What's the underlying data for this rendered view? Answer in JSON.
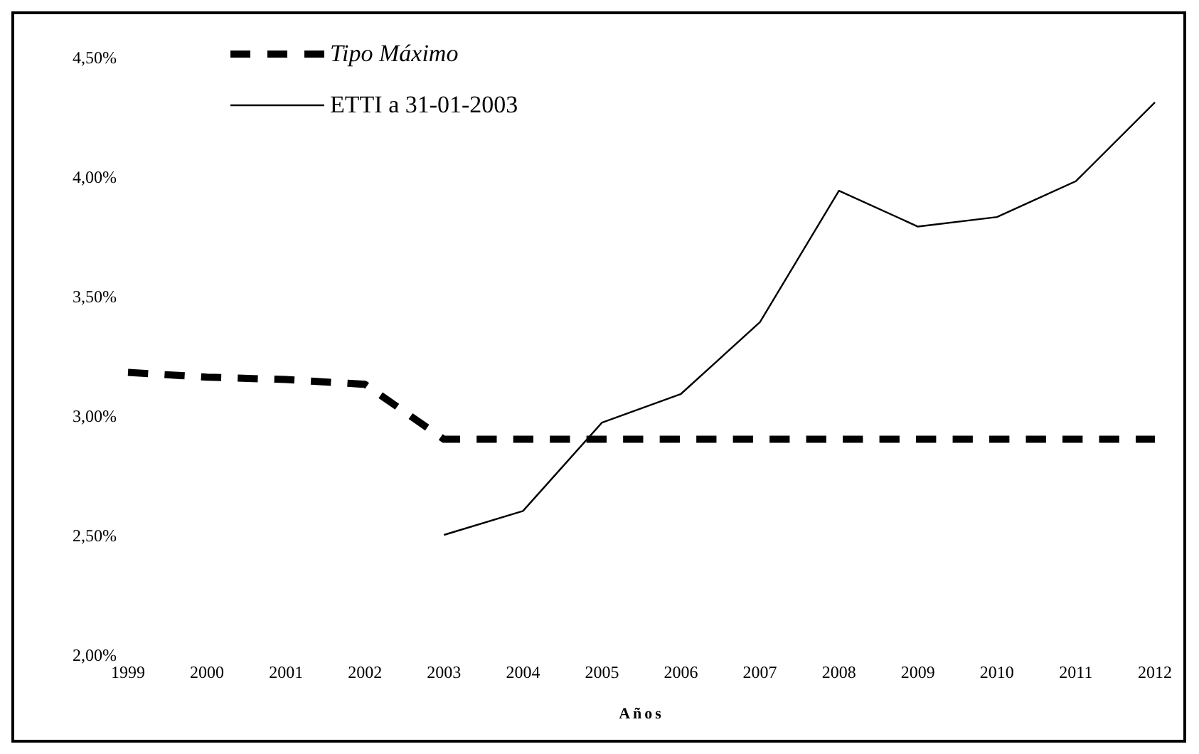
{
  "chart_data": {
    "type": "line",
    "xlabel": "Años",
    "categories": [
      "1999",
      "2000",
      "2001",
      "2002",
      "2003",
      "2004",
      "2005",
      "2006",
      "2007",
      "2008",
      "2009",
      "2010",
      "2011",
      "2012"
    ],
    "series": [
      {
        "name": "Tipo Máximo",
        "color": "#000000",
        "line_style": "dashed",
        "values": [
          3.18,
          3.16,
          3.15,
          3.13,
          2.9,
          2.9,
          2.9,
          2.9,
          2.9,
          2.9,
          2.9,
          2.9,
          2.9,
          2.9
        ]
      },
      {
        "name": "ETTI a 31-01-2003",
        "color": "#000000",
        "line_style": "solid",
        "values": [
          null,
          null,
          null,
          null,
          2.5,
          2.6,
          2.97,
          3.09,
          3.39,
          3.94,
          3.79,
          3.83,
          3.98,
          4.31
        ]
      }
    ],
    "ylim": [
      2,
      4.5
    ],
    "yticks": [
      {
        "value": 2,
        "label": "2,00%"
      },
      {
        "value": 2.5,
        "label": "2,50%"
      },
      {
        "value": 3,
        "label": "3,00%"
      },
      {
        "value": 3.5,
        "label": "3,50%"
      },
      {
        "value": 4,
        "label": "4,00%"
      },
      {
        "value": 4.5,
        "label": "4,50%"
      }
    ],
    "grid": false,
    "legend": "top left",
    "marker": "none"
  }
}
